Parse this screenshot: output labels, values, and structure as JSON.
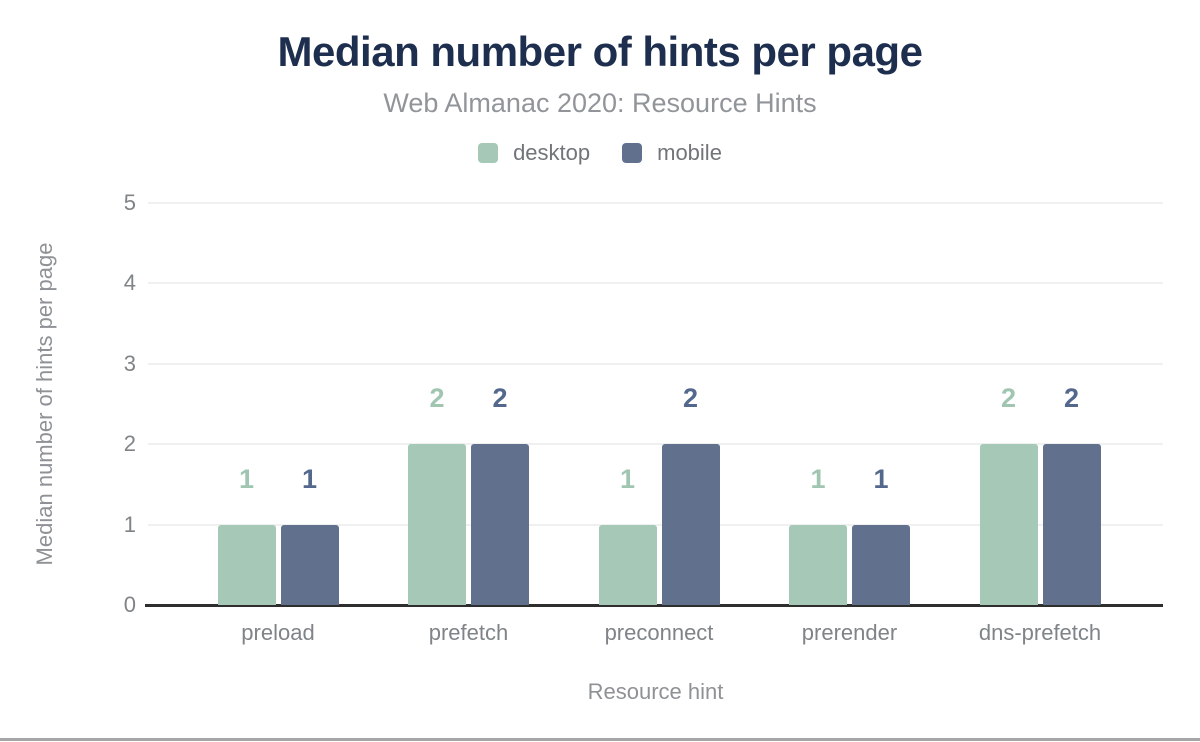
{
  "chart_data": {
    "type": "bar",
    "title": "Median number of hints per page",
    "subtitle": "Web Almanac 2020: Resource Hints",
    "xlabel": "Resource hint",
    "ylabel": "Median number of hints per page",
    "categories": [
      "preload",
      "prefetch",
      "preconnect",
      "prerender",
      "dns-prefetch"
    ],
    "series": [
      {
        "name": "desktop",
        "color": "#a5c9b6",
        "label_color": "#a0c6b2",
        "values": [
          1,
          2,
          1,
          1,
          2
        ]
      },
      {
        "name": "mobile",
        "color": "#61718d",
        "label_color": "#53688c",
        "values": [
          1,
          2,
          2,
          1,
          2
        ]
      }
    ],
    "ylim": [
      0,
      5
    ],
    "yticks": [
      0,
      1,
      2,
      3,
      4,
      5
    ],
    "grid": "horizontal",
    "legend_position": "top",
    "bar_value_labels": true
  },
  "colors": {
    "title": "#1e2e4e",
    "subtitle": "#919599",
    "tick_text": "#7f8488",
    "axis_title_text": "#8e9296",
    "gridline": "#f0f0f0",
    "baseline": "#2e2e2e",
    "background": "#ffffff",
    "bottom_rule": "#a6a6a6"
  }
}
